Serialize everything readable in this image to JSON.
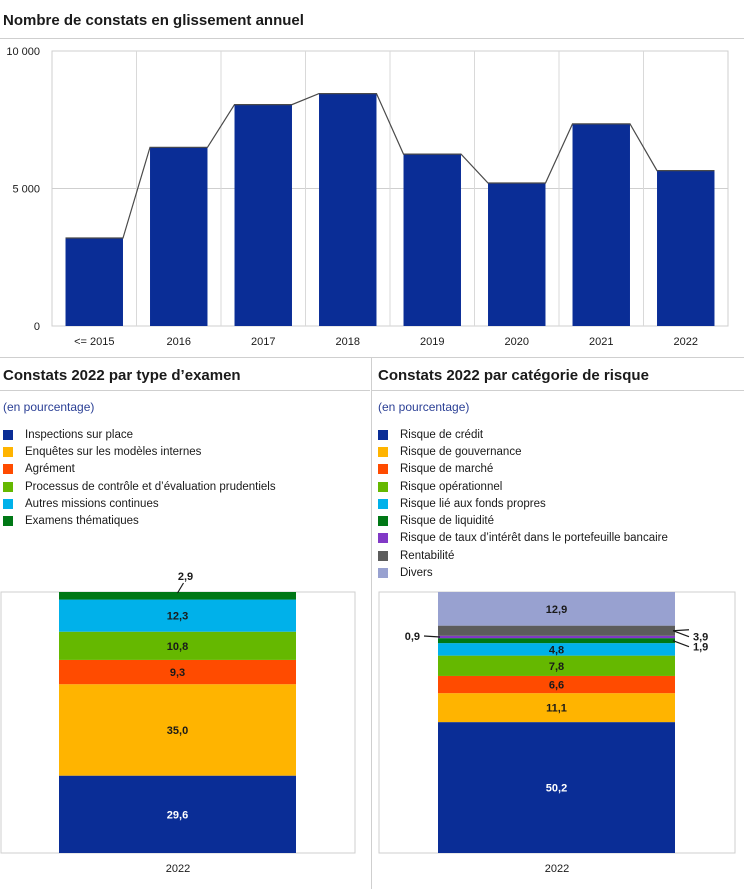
{
  "bar_panel": {
    "title": "Nombre de constats en glissement annuel"
  },
  "left_panel": {
    "title": "Constats 2022 par type d’examen",
    "subtitle": "(en pourcentage)"
  },
  "right_panel": {
    "title": "Constats 2022 par catégorie de risque",
    "subtitle": "(en pourcentage)"
  },
  "chart_data": [
    {
      "type": "bar",
      "title": "Nombre de constats en glissement annuel",
      "categories": [
        "<= 2015",
        "2016",
        "2017",
        "2018",
        "2019",
        "2020",
        "2021",
        "2022"
      ],
      "values": [
        3200,
        6500,
        8050,
        8450,
        6250,
        5200,
        7350,
        5650
      ],
      "ylim": [
        0,
        10000
      ],
      "yticks": [
        0,
        5000,
        10000
      ],
      "ytick_labels": [
        "0",
        "5 000",
        "10 000"
      ],
      "grid": true,
      "colors": {
        "bar": "#0a2d96",
        "line": "#4a4a4a"
      }
    },
    {
      "type": "bar",
      "stacked": true,
      "title": "Constats 2022 par type d’examen",
      "subtitle": "(en pourcentage)",
      "categories": [
        "2022"
      ],
      "ylim": [
        0,
        100
      ],
      "series": [
        {
          "name": "Inspections  sur place",
          "values": [
            29.6
          ],
          "label": "29,6",
          "color": "#0a2d96"
        },
        {
          "name": "Enquêtes  sur les modèles internes",
          "values": [
            35.0
          ],
          "label": "35,0",
          "color": "#ffb400"
        },
        {
          "name": "Agrément",
          "values": [
            9.3
          ],
          "label": "9,3",
          "color": "#ff4b00"
        },
        {
          "name": "Processus  de contrôle et d’évaluation  prudentiels",
          "values": [
            10.8
          ],
          "label": "10,8",
          "color": "#65b800"
        },
        {
          "name": "Autres missions continues",
          "values": [
            12.3
          ],
          "label": "12,3",
          "color": "#00b1ea"
        },
        {
          "name": "Examens  thématiques",
          "values": [
            2.9
          ],
          "label": "2,9",
          "color": "#007816"
        }
      ]
    },
    {
      "type": "bar",
      "stacked": true,
      "title": "Constats 2022 par catégorie de risque",
      "subtitle": "(en pourcentage)",
      "categories": [
        "2022"
      ],
      "ylim": [
        0,
        100
      ],
      "series": [
        {
          "name": "Risque de crédit",
          "values": [
            50.2
          ],
          "label": "50,2",
          "color": "#0a2d96"
        },
        {
          "name": "Risque de gouvernance",
          "values": [
            11.1
          ],
          "label": "11,1",
          "color": "#ffb400"
        },
        {
          "name": "Risque de marché",
          "values": [
            6.6
          ],
          "label": "6,6",
          "color": "#ff4b00"
        },
        {
          "name": "Risque opérationnel",
          "values": [
            7.8
          ],
          "label": "7,8",
          "color": "#65b800"
        },
        {
          "name": "Risque lié aux fonds  propres",
          "values": [
            4.8
          ],
          "label": "4,8",
          "color": "#00b1ea"
        },
        {
          "name": "Risque de liquidité",
          "values": [
            1.9
          ],
          "label": "1,9",
          "color": "#007816"
        },
        {
          "name": "Risque de taux  d’intérêt dans  le portefeuille  bancaire",
          "values": [
            0.9
          ],
          "label": "0,9",
          "color": "#8139c6"
        },
        {
          "name": "Rentabilité",
          "values": [
            3.9
          ],
          "label": "3,9",
          "color": "#5c5c5c"
        },
        {
          "name": "Divers",
          "values": [
            12.9
          ],
          "label": "12,9",
          "color": "#98a1d0"
        }
      ]
    }
  ]
}
